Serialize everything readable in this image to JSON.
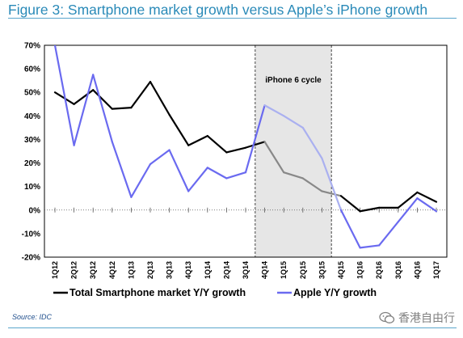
{
  "figure": {
    "title": "Figure 3: Smartphone market growth versus Apple’s iPhone growth",
    "source": "Source: IDC",
    "watermark": "香港自由行"
  },
  "colors": {
    "title": "#2a8ab8",
    "market": "#000000",
    "apple": "#6a6af0",
    "shade": "#e6e6e6"
  },
  "chart_data": {
    "type": "line",
    "title": "",
    "xlabel": "",
    "ylabel": "",
    "ylim": [
      -0.2,
      0.7
    ],
    "yticks": [
      "70%",
      "60%",
      "50%",
      "40%",
      "30%",
      "20%",
      "10%",
      "0%",
      "-10%",
      "-20%"
    ],
    "categories": [
      "1Q12",
      "2Q12",
      "3Q12",
      "4Q12",
      "1Q13",
      "2Q13",
      "3Q13",
      "4Q13",
      "1Q14",
      "2Q14",
      "3Q14",
      "4Q14",
      "1Q15",
      "2Q15",
      "3Q15",
      "4Q15",
      "1Q16",
      "2Q16",
      "3Q16",
      "4Q16",
      "1Q17"
    ],
    "series": [
      {
        "name": "Total Smartphone market Y/Y growth",
        "color": "#000000",
        "values": [
          0.5,
          0.45,
          0.51,
          0.43,
          0.435,
          0.545,
          0.405,
          0.275,
          0.315,
          0.245,
          0.265,
          0.29,
          0.16,
          0.135,
          0.08,
          0.06,
          -0.005,
          0.01,
          0.01,
          0.075,
          0.035
        ]
      },
      {
        "name": "Apple Y/Y growth",
        "color": "#6a6af0",
        "values": [
          0.7,
          0.275,
          0.575,
          0.29,
          0.055,
          0.195,
          0.255,
          0.08,
          0.18,
          0.135,
          0.16,
          0.445,
          0.4,
          0.35,
          0.22,
          0.0,
          -0.16,
          -0.15,
          -0.05,
          0.05,
          -0.005
        ]
      }
    ],
    "shaded_region": {
      "label": "iPhone 6 cycle",
      "from": "4Q14",
      "to": "3Q15"
    },
    "grid": false,
    "legend": "bottom"
  }
}
